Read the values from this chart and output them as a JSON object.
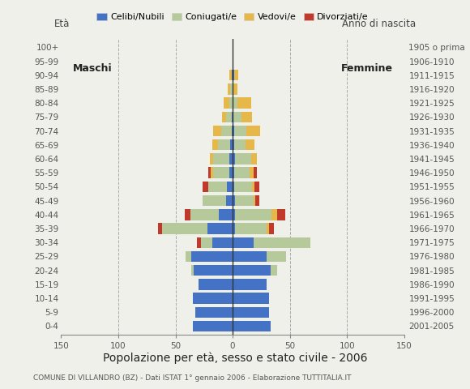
{
  "age_groups": [
    "0-4",
    "5-9",
    "10-14",
    "15-19",
    "20-24",
    "25-29",
    "30-34",
    "35-39",
    "40-44",
    "45-49",
    "50-54",
    "55-59",
    "60-64",
    "65-69",
    "70-74",
    "75-79",
    "80-84",
    "85-89",
    "90-94",
    "95-99",
    "100+"
  ],
  "birth_years": [
    "2001-2005",
    "1996-2000",
    "1991-1995",
    "1986-1990",
    "1981-1985",
    "1976-1980",
    "1971-1975",
    "1966-1970",
    "1961-1965",
    "1956-1960",
    "1951-1955",
    "1946-1950",
    "1941-1945",
    "1936-1940",
    "1931-1935",
    "1926-1930",
    "1921-1925",
    "1916-1920",
    "1911-1915",
    "1906-1910",
    "1905 o prima"
  ],
  "males": {
    "celibe": [
      35,
      33,
      35,
      30,
      34,
      36,
      18,
      22,
      12,
      6,
      5,
      3,
      3,
      2,
      1,
      1,
      0,
      0,
      1,
      0,
      0
    ],
    "coniugato": [
      0,
      0,
      0,
      0,
      2,
      5,
      10,
      40,
      25,
      20,
      16,
      14,
      14,
      11,
      9,
      5,
      3,
      2,
      0,
      0,
      0
    ],
    "vedovo": [
      0,
      0,
      0,
      0,
      0,
      0,
      0,
      0,
      0,
      0,
      0,
      2,
      3,
      5,
      7,
      3,
      5,
      2,
      2,
      0,
      0
    ],
    "divorziato": [
      0,
      0,
      0,
      0,
      0,
      0,
      3,
      3,
      5,
      0,
      5,
      2,
      0,
      0,
      0,
      0,
      0,
      0,
      0,
      0,
      0
    ]
  },
  "females": {
    "nubile": [
      33,
      32,
      32,
      30,
      33,
      30,
      18,
      2,
      2,
      2,
      1,
      1,
      2,
      1,
      1,
      0,
      0,
      0,
      1,
      0,
      0
    ],
    "coniugata": [
      0,
      0,
      0,
      0,
      6,
      17,
      50,
      28,
      32,
      16,
      16,
      14,
      14,
      10,
      11,
      8,
      4,
      0,
      0,
      0,
      0
    ],
    "vedova": [
      0,
      0,
      0,
      0,
      0,
      0,
      0,
      2,
      5,
      2,
      2,
      3,
      5,
      8,
      12,
      9,
      12,
      4,
      4,
      0,
      0
    ],
    "divorziata": [
      0,
      0,
      0,
      0,
      0,
      0,
      0,
      4,
      7,
      3,
      4,
      3,
      0,
      0,
      0,
      0,
      0,
      0,
      0,
      0,
      0
    ]
  },
  "colors": {
    "celibe": "#4472c4",
    "coniugato": "#b5c99a",
    "vedovo": "#e6b84a",
    "divorziato": "#c0392b"
  },
  "xlim": 150,
  "title": "Popolazione per età, sesso e stato civile - 2006",
  "subtitle": "COMUNE DI VILLANDRO (BZ) - Dati ISTAT 1° gennaio 2006 - Elaborazione TUTTITALIA.IT",
  "ylabel_left": "Età",
  "ylabel_right": "Anno di nascita",
  "label_maschi": "Maschi",
  "label_femmine": "Femmine",
  "legend_labels": [
    "Celibi/Nubili",
    "Coniugati/e",
    "Vedovi/e",
    "Divorziati/e"
  ],
  "bg_color": "#f0f0ea",
  "title_fontsize": 10,
  "subtitle_fontsize": 6.5,
  "tick_fontsize": 7.5,
  "legend_fontsize": 8
}
